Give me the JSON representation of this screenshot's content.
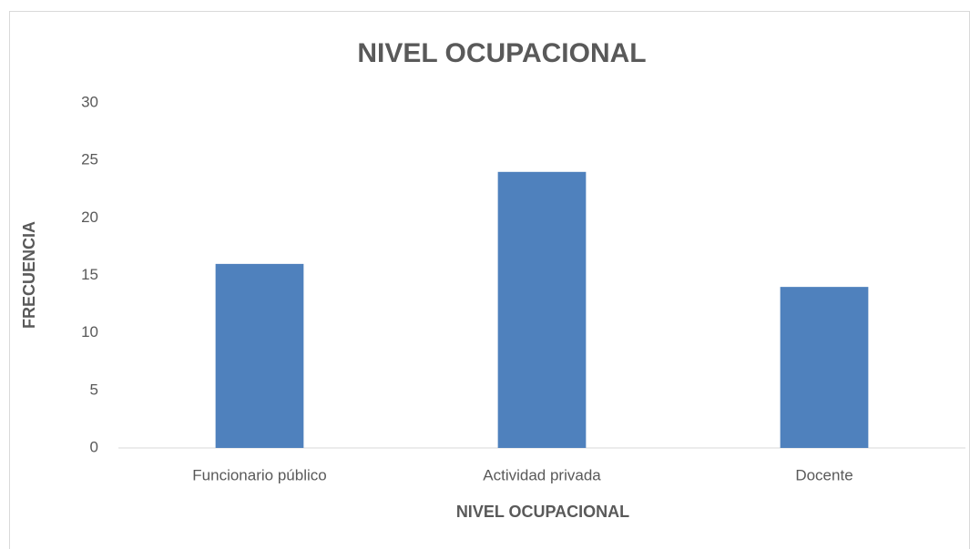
{
  "chart_data": {
    "type": "bar",
    "title": "NIVEL OCUPACIONAL",
    "x_label": "NIVEL OCUPACIONAL",
    "y_label": "FRECUENCIA",
    "categories": [
      "Funcionario público",
      "Actividad privada",
      "Docente"
    ],
    "values": [
      16,
      24,
      14
    ],
    "color": "#4f81bd",
    "ylim": [
      0,
      30
    ],
    "yticks": [
      0,
      5,
      10,
      15,
      20,
      25,
      30
    ],
    "grid": false
  }
}
